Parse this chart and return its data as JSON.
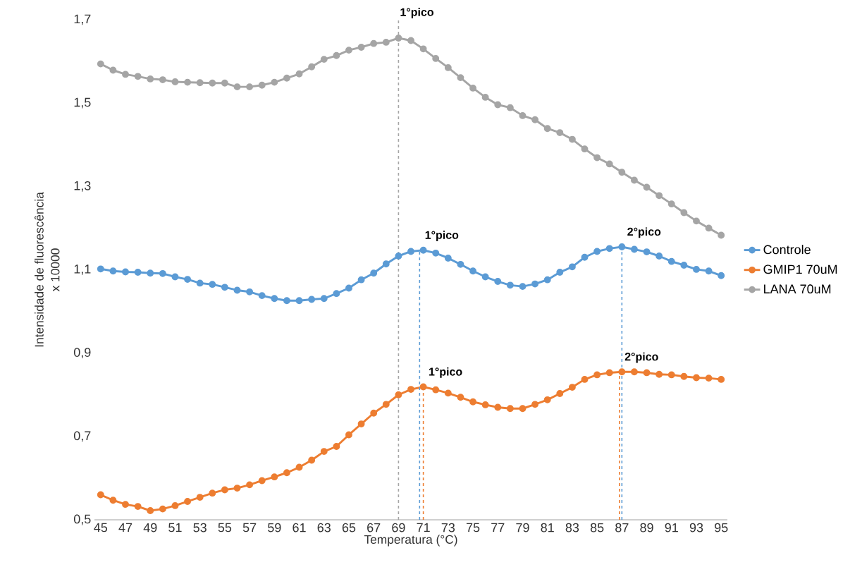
{
  "chart_data": {
    "type": "line",
    "xlabel": "Temperatura (°C)",
    "ylabel": "Intensidade de fluorescência x 10000",
    "x": [
      45,
      46,
      47,
      48,
      49,
      50,
      51,
      52,
      53,
      54,
      55,
      56,
      57,
      58,
      59,
      60,
      61,
      62,
      63,
      64,
      65,
      66,
      67,
      68,
      69,
      70,
      71,
      72,
      73,
      74,
      75,
      76,
      77,
      78,
      79,
      80,
      81,
      82,
      83,
      84,
      85,
      86,
      87,
      88,
      89,
      90,
      91,
      92,
      93,
      94,
      95
    ],
    "xlim": [
      44.5,
      95.5
    ],
    "xticks": [
      45,
      47,
      49,
      51,
      53,
      55,
      57,
      59,
      61,
      63,
      65,
      67,
      69,
      71,
      73,
      75,
      77,
      79,
      81,
      83,
      85,
      87,
      89,
      91,
      93,
      95
    ],
    "ylim": [
      0.5,
      1.7
    ],
    "yticks": [
      {
        "value": 0.5,
        "label": "0,5"
      },
      {
        "value": 0.7,
        "label": "0,7"
      },
      {
        "value": 0.9,
        "label": "0,9"
      },
      {
        "value": 1.1,
        "label": "1,1"
      },
      {
        "value": 1.3,
        "label": "1,3"
      },
      {
        "value": 1.5,
        "label": "1,5"
      },
      {
        "value": 1.7,
        "label": "1,7"
      }
    ],
    "ref_lines": [
      {
        "axis": "x",
        "value": 69,
        "label": "1°pico",
        "color": "#a5a5a5",
        "line_style": "dashed"
      }
    ],
    "grid": false,
    "legend": "right",
    "marker": "circle",
    "line_style": "solid",
    "series": [
      {
        "name": "Controle",
        "color": "#5b9bd5",
        "values": [
          1.102,
          1.097,
          1.095,
          1.094,
          1.092,
          1.091,
          1.083,
          1.077,
          1.068,
          1.065,
          1.058,
          1.051,
          1.047,
          1.038,
          1.031,
          1.026,
          1.026,
          1.029,
          1.031,
          1.043,
          1.056,
          1.076,
          1.092,
          1.114,
          1.133,
          1.144,
          1.147,
          1.14,
          1.128,
          1.113,
          1.097,
          1.083,
          1.072,
          1.063,
          1.06,
          1.066,
          1.076,
          1.094,
          1.107,
          1.13,
          1.144,
          1.151,
          1.155,
          1.149,
          1.143,
          1.133,
          1.12,
          1.111,
          1.101,
          1.097,
          1.086
        ]
      },
      {
        "name": "GMIP1 70uM",
        "color": "#ed7d31",
        "values": [
          0.56,
          0.547,
          0.537,
          0.532,
          0.522,
          0.526,
          0.534,
          0.544,
          0.554,
          0.564,
          0.572,
          0.576,
          0.584,
          0.594,
          0.603,
          0.613,
          0.626,
          0.643,
          0.664,
          0.676,
          0.704,
          0.73,
          0.756,
          0.777,
          0.8,
          0.813,
          0.819,
          0.812,
          0.804,
          0.794,
          0.783,
          0.776,
          0.77,
          0.767,
          0.767,
          0.777,
          0.788,
          0.803,
          0.818,
          0.837,
          0.848,
          0.853,
          0.855,
          0.855,
          0.853,
          0.849,
          0.848,
          0.844,
          0.841,
          0.84,
          0.837
        ]
      },
      {
        "name": "LANA 70uM",
        "color": "#a5a5a5",
        "values": [
          1.594,
          1.579,
          1.569,
          1.564,
          1.558,
          1.556,
          1.551,
          1.55,
          1.549,
          1.548,
          1.548,
          1.539,
          1.539,
          1.543,
          1.55,
          1.56,
          1.57,
          1.587,
          1.605,
          1.614,
          1.627,
          1.634,
          1.643,
          1.646,
          1.656,
          1.65,
          1.63,
          1.607,
          1.585,
          1.561,
          1.536,
          1.514,
          1.496,
          1.489,
          1.47,
          1.46,
          1.439,
          1.429,
          1.413,
          1.39,
          1.369,
          1.354,
          1.334,
          1.315,
          1.298,
          1.278,
          1.258,
          1.237,
          1.217,
          1.2,
          1.183
        ]
      },
      {
        "type": "line",
        "color": "#5b9bd5",
        "line_style": "dashed",
        "marker": "none",
        "x": [
          70.7,
          70.7
        ],
        "values": [
          0.5,
          1.147
        ]
      },
      {
        "type": "line",
        "color": "#ed7d31",
        "line_style": "dashed",
        "marker": "none",
        "x": [
          71.0,
          71.0
        ],
        "values": [
          0.5,
          0.819
        ]
      },
      {
        "type": "line",
        "color": "#5b9bd5",
        "line_style": "dashed",
        "marker": "none",
        "x": [
          87.0,
          87.0
        ],
        "values": [
          0.5,
          1.155
        ]
      },
      {
        "type": "line",
        "color": "#ed7d31",
        "line_style": "dashed",
        "marker": "none",
        "x": [
          86.8,
          86.8
        ],
        "values": [
          0.5,
          0.855
        ]
      }
    ],
    "annotations": [
      {
        "text": "1°pico",
        "x": 70.7,
        "y": 1.147
      },
      {
        "text": "2°pico",
        "x": 87.0,
        "y": 1.155
      },
      {
        "text": "1°pico",
        "x": 71.0,
        "y": 0.819
      },
      {
        "text": "2°pico",
        "x": 86.8,
        "y": 0.855
      }
    ]
  }
}
